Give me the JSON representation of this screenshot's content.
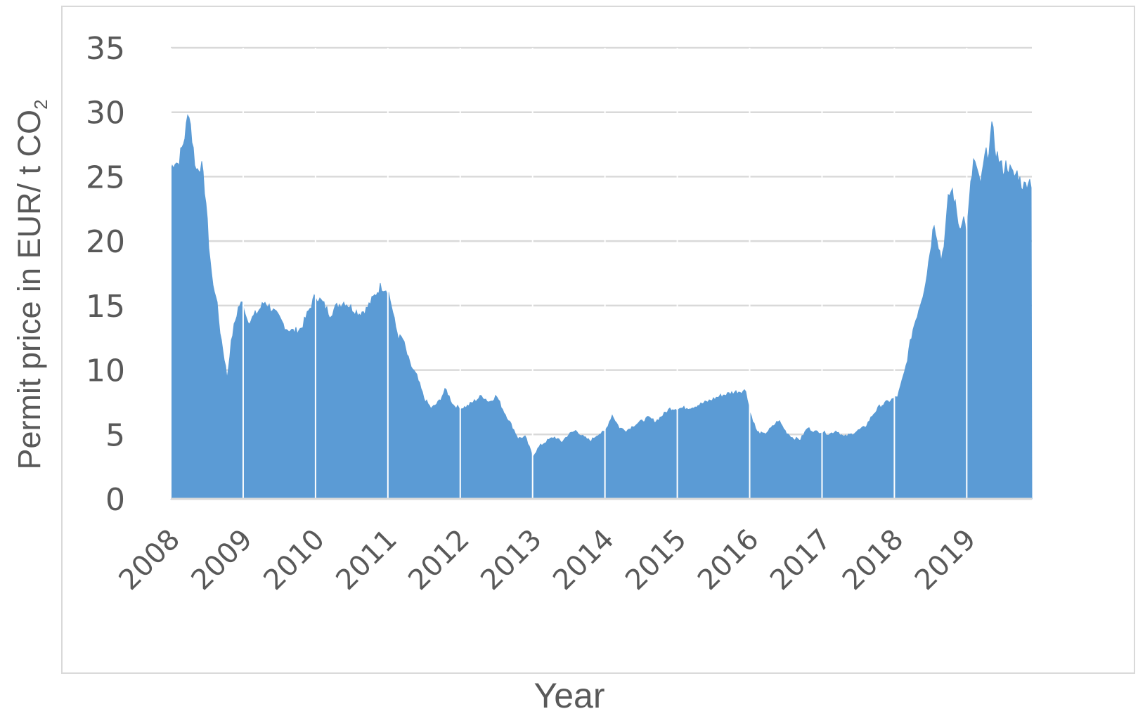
{
  "chart_data": {
    "type": "area",
    "title": "",
    "xlabel": "Year",
    "ylabel": "Permit price in EUR/ t CO",
    "ylabel_sub": "2",
    "ylim": [
      0,
      35
    ],
    "yticks": [
      0,
      5,
      10,
      15,
      20,
      25,
      30,
      35
    ],
    "xlim": [
      2008.0,
      2019.9
    ],
    "xticks": [
      "2008",
      "2009",
      "2010",
      "2011",
      "2012",
      "2013",
      "2014",
      "2015",
      "2016",
      "2017",
      "2018",
      "2019"
    ],
    "grid": true,
    "legend": "none",
    "color": "#5b9bd5",
    "series": [
      {
        "x": [
          2008.0,
          2008.05,
          2008.1,
          2008.17,
          2008.22,
          2008.25,
          2008.3,
          2008.35,
          2008.42,
          2008.48,
          2008.52,
          2008.58,
          2008.62,
          2008.68,
          2008.75,
          2008.78,
          2008.82,
          2008.86,
          2008.9,
          2008.94,
          2009.0,
          2009.05,
          2009.1,
          2009.15,
          2009.2,
          2009.3,
          2009.4,
          2009.5,
          2009.6,
          2009.7,
          2009.8,
          2009.9,
          2010.0,
          2010.1,
          2010.2,
          2010.3,
          2010.4,
          2010.5,
          2010.6,
          2010.7,
          2010.8,
          2010.9,
          2011.0,
          2011.05,
          2011.1,
          2011.15,
          2011.2,
          2011.3,
          2011.4,
          2011.5,
          2011.6,
          2011.7,
          2011.8,
          2011.9,
          2012.0,
          2012.1,
          2012.2,
          2012.3,
          2012.4,
          2012.5,
          2012.6,
          2012.7,
          2012.8,
          2012.9,
          2013.0,
          2013.1,
          2013.2,
          2013.3,
          2013.4,
          2013.5,
          2013.6,
          2013.7,
          2013.8,
          2013.9,
          2014.0,
          2014.1,
          2014.2,
          2014.3,
          2014.4,
          2014.5,
          2014.6,
          2014.7,
          2014.8,
          2014.9,
          2015.0,
          2015.2,
          2015.4,
          2015.6,
          2015.8,
          2015.95,
          2016.0,
          2016.1,
          2016.2,
          2016.3,
          2016.4,
          2016.5,
          2016.6,
          2016.7,
          2016.8,
          2016.9,
          2017.0,
          2017.1,
          2017.2,
          2017.3,
          2017.4,
          2017.5,
          2017.6,
          2017.7,
          2017.8,
          2017.9,
          2018.0,
          2018.05,
          2018.1,
          2018.15,
          2018.2,
          2018.25,
          2018.3,
          2018.35,
          2018.4,
          2018.45,
          2018.5,
          2018.55,
          2018.6,
          2018.65,
          2018.7,
          2018.75,
          2018.8,
          2018.85,
          2018.9,
          2018.95,
          2019.0,
          2019.05,
          2019.1,
          2019.15,
          2019.2,
          2019.25,
          2019.3,
          2019.35,
          2019.4,
          2019.45,
          2019.5,
          2019.55,
          2019.6,
          2019.65,
          2019.7,
          2019.75,
          2019.8,
          2019.85,
          2019.9
        ],
        "y": [
          25.5,
          26.3,
          26.0,
          27.5,
          29.0,
          30.3,
          27.5,
          25.5,
          26.0,
          23.5,
          20.0,
          16.5,
          16.0,
          13.0,
          10.5,
          9.3,
          11.5,
          13.0,
          14.0,
          15.0,
          15.2,
          14.0,
          13.8,
          14.2,
          14.5,
          15.3,
          14.7,
          14.0,
          13.2,
          13.0,
          13.2,
          14.5,
          15.8,
          15.2,
          14.3,
          15.0,
          15.3,
          14.8,
          14.4,
          14.7,
          15.6,
          16.5,
          16.2,
          15.0,
          13.5,
          12.5,
          12.5,
          10.5,
          9.5,
          7.8,
          7.0,
          7.5,
          8.5,
          7.3,
          7.0,
          7.2,
          7.6,
          8.0,
          7.5,
          8.0,
          6.8,
          5.8,
          4.7,
          4.8,
          3.3,
          4.1,
          4.5,
          4.8,
          4.4,
          5.0,
          5.3,
          4.8,
          4.5,
          5.0,
          5.2,
          6.5,
          5.5,
          5.3,
          5.7,
          6.0,
          6.3,
          6.0,
          6.5,
          7.0,
          7.0,
          7.1,
          7.5,
          8.0,
          8.3,
          8.4,
          6.8,
          5.2,
          5.0,
          5.5,
          6.1,
          5.2,
          4.7,
          4.6,
          5.5,
          5.2,
          5.2,
          5.0,
          5.3,
          4.8,
          5.0,
          5.3,
          5.6,
          6.5,
          7.2,
          7.5,
          7.8,
          8.0,
          9.0,
          10.0,
          11.5,
          13.0,
          14.0,
          15.0,
          16.0,
          17.5,
          19.5,
          21.5,
          20.0,
          18.5,
          20.5,
          23.5,
          24.0,
          22.5,
          21.0,
          22.0,
          20.5,
          24.0,
          26.5,
          25.0,
          24.5,
          26.5,
          27.0,
          28.8,
          27.0,
          26.2,
          25.5,
          26.0,
          25.5,
          25.0,
          25.3,
          24.5,
          24.2,
          24.8,
          24.5
        ]
      }
    ]
  }
}
